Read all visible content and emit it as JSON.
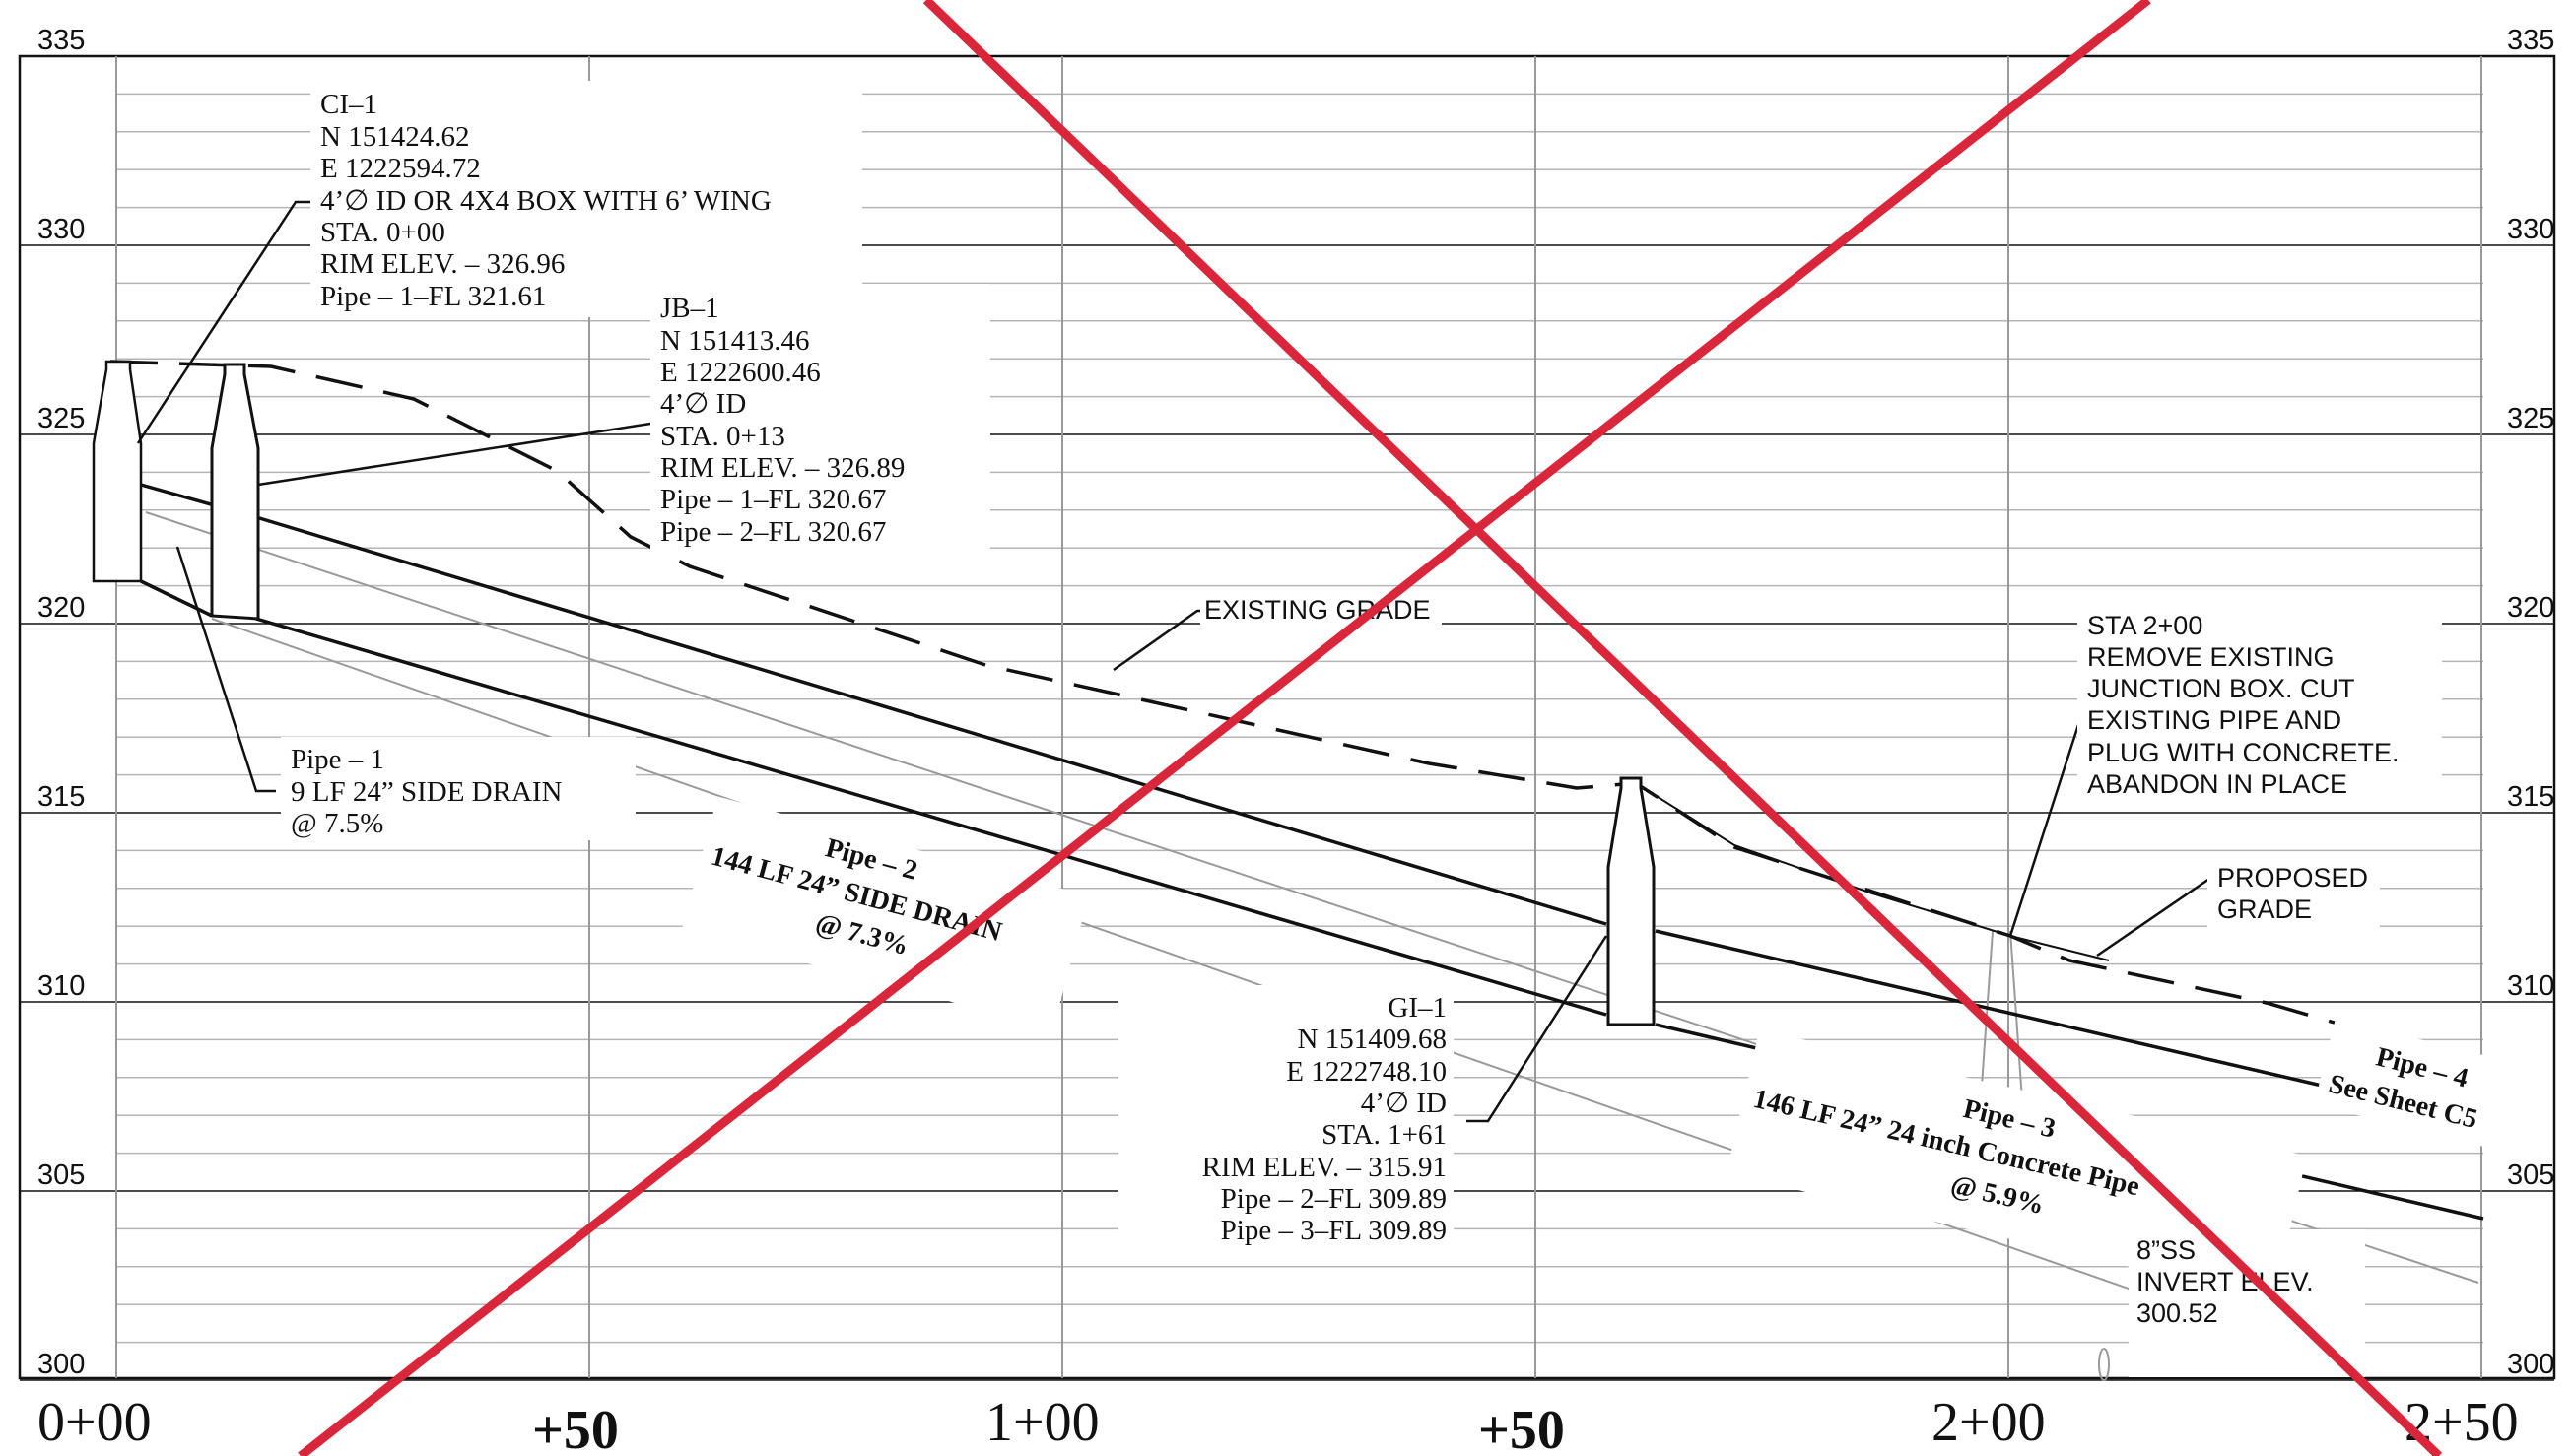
{
  "elevation_labels": [
    "335",
    "330",
    "325",
    "320",
    "315",
    "310",
    "305",
    "300"
  ],
  "station_labels": [
    "0+00",
    "+50",
    "1+00",
    "+50",
    "2+00",
    "2+50"
  ],
  "structures": {
    "ci1": [
      "CI–1",
      "N 151424.62",
      "E 1222594.72",
      "4’∅ ID OR 4X4 BOX WITH 6’ WING",
      "STA. 0+00",
      "RIM ELEV. – 326.96",
      "Pipe – 1–FL 321.61"
    ],
    "jb1": [
      "JB–1",
      "N 151413.46",
      "E 1222600.46",
      "4’∅ ID",
      "STA. 0+13",
      "RIM ELEV. – 326.89",
      "Pipe – 1–FL 320.67",
      "Pipe – 2–FL 320.67"
    ],
    "gi1": [
      "GI–1",
      "N 151409.68",
      "E 1222748.10",
      "4’∅ ID",
      "STA. 1+61",
      "RIM ELEV. – 315.91",
      "Pipe – 2–FL 309.89",
      "Pipe – 3–FL 309.89"
    ]
  },
  "pipes": {
    "pipe1": [
      "Pipe – 1",
      "9 LF 24” SIDE DRAIN",
      "@ 7.5%"
    ],
    "pipe2": [
      "Pipe – 2",
      "144 LF 24” SIDE DRAIN",
      "@ 7.3%"
    ],
    "pipe3": [
      "Pipe – 3",
      "146 LF 24” 24 inch Concrete Pipe",
      "@ 5.9%"
    ],
    "pipe4": [
      "Pipe – 4",
      "See Sheet C5"
    ]
  },
  "notes": {
    "existing_grade": "EXISTING GRADE",
    "proposed_grade": [
      "PROPOSED",
      "GRADE"
    ],
    "sta200": [
      "STA 2+00",
      "REMOVE EXISTING",
      "JUNCTION BOX. CUT",
      "EXISTING PIPE AND",
      "PLUG WITH CONCRETE.",
      "ABANDON IN PLACE"
    ],
    "ss": [
      "8”SS",
      "INVERT ELEV.",
      "300.52"
    ]
  },
  "colors": {
    "void_x": "#d9263a",
    "ink": "#111111",
    "grid_major": "#999999",
    "grid_minor": "#b5b5b5"
  }
}
